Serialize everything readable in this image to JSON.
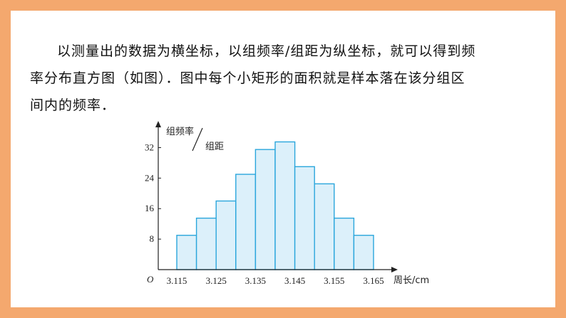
{
  "paragraph": {
    "line1": "以测量出的数据为横坐标，以组频率/组距为纵坐标，就可以得到频",
    "line2": "率分布直方图（如图）．图中每个小矩形的面积就是样本落在该分组区",
    "line3": "间内的频率．"
  },
  "colors": {
    "frame": "#f4a86e",
    "bar_fill": "#dcf0fa",
    "bar_stroke": "#2aa6dc",
    "axis": "#222222"
  },
  "chart_data": {
    "type": "bar",
    "title": "",
    "ylabel_top": "组频率",
    "ylabel_bottom": "组距",
    "xlabel": "周长/cm",
    "origin_label": "O",
    "bin_edges": [
      3.115,
      3.12,
      3.125,
      3.13,
      3.135,
      3.14,
      3.145,
      3.15,
      3.155,
      3.16,
      3.165
    ],
    "x_tick_labels": [
      "3.115",
      "3.125",
      "3.135",
      "3.145",
      "3.155",
      "3.165"
    ],
    "x_tick_values": [
      3.115,
      3.125,
      3.135,
      3.145,
      3.155,
      3.165
    ],
    "y_ticks": [
      8,
      16,
      24,
      32
    ],
    "values": [
      9,
      13.5,
      18,
      25,
      31.5,
      33.5,
      27,
      22.5,
      13.5,
      9
    ],
    "ylim": [
      0,
      40
    ],
    "grid": false
  }
}
